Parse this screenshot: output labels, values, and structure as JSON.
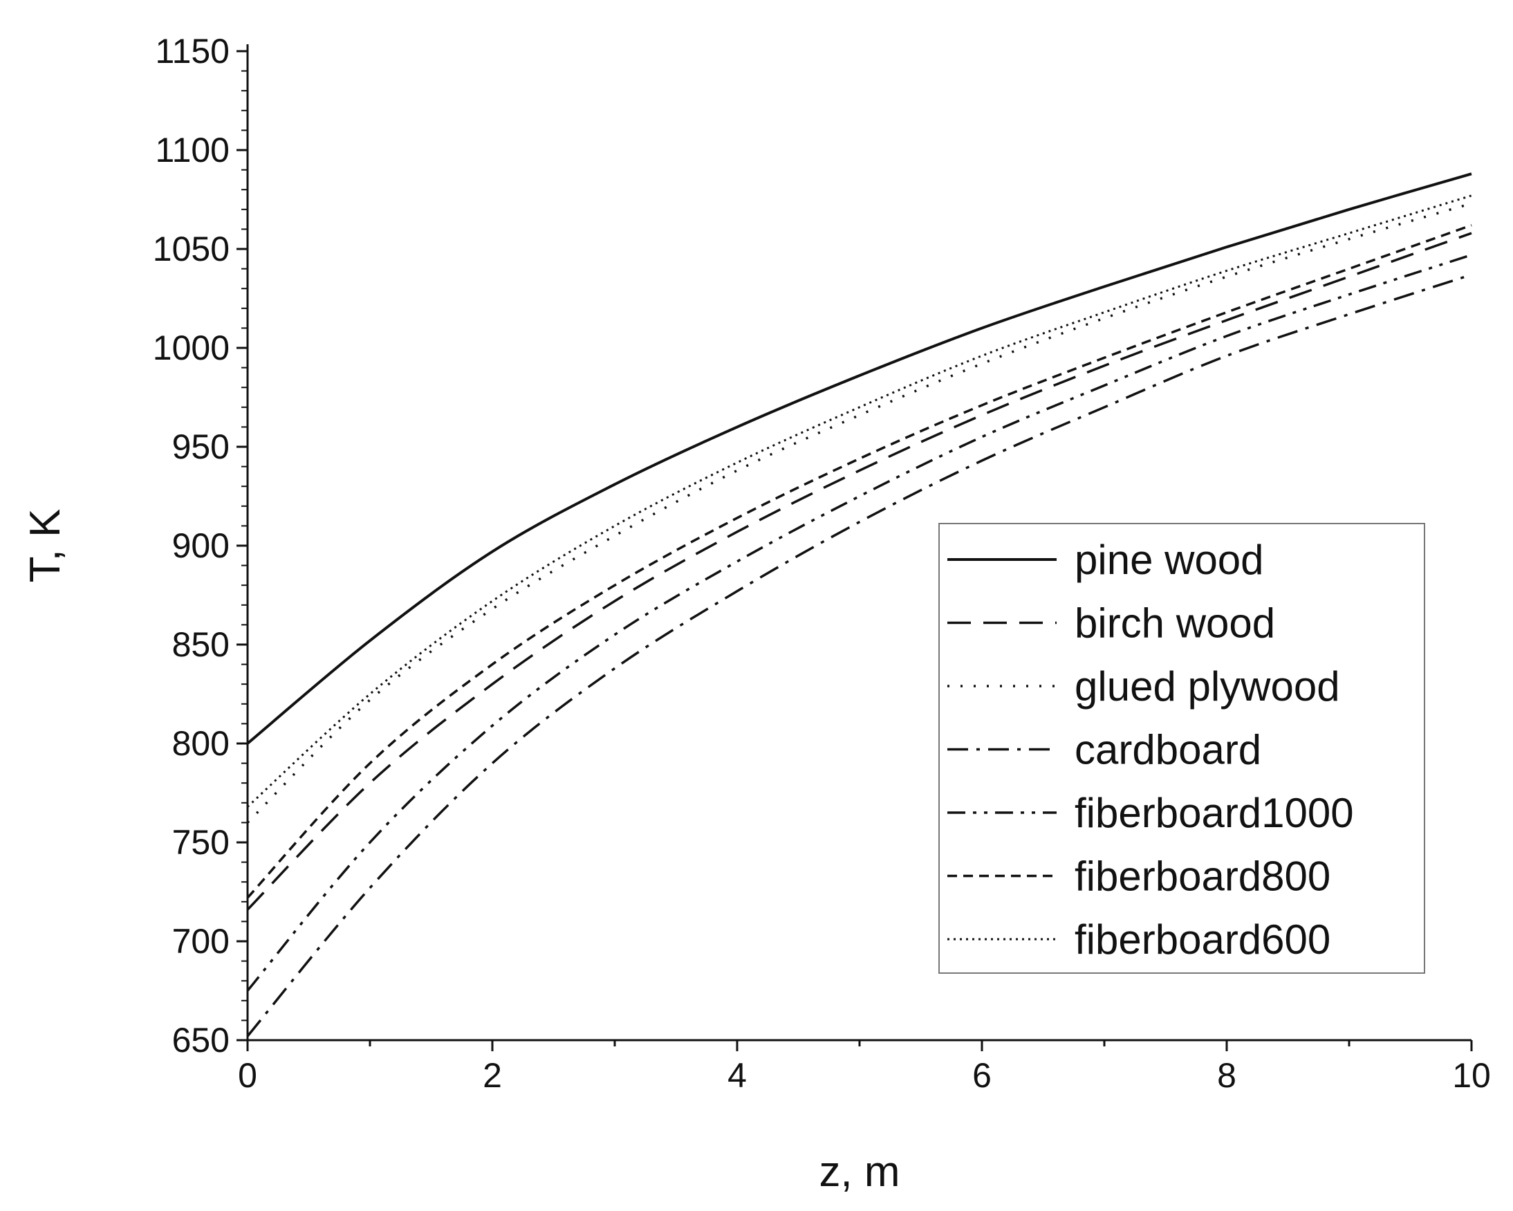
{
  "chart_data": {
    "type": "line",
    "xlabel": "z, m",
    "ylabel": "T, K",
    "xlim": [
      0,
      10
    ],
    "ylim": [
      650,
      1150
    ],
    "x_ticks": [
      "0",
      "2",
      "4",
      "6",
      "8",
      "10"
    ],
    "y_ticks": [
      "650",
      "700",
      "750",
      "800",
      "850",
      "900",
      "950",
      "1000",
      "1050",
      "1100",
      "1150"
    ],
    "grid": false,
    "legend_position": "right",
    "x": [
      0,
      1,
      2,
      3,
      4,
      5,
      6,
      7,
      8,
      9,
      10
    ],
    "series": [
      {
        "name": "pine wood",
        "style": "solid",
        "values": [
          800,
          852,
          897,
          931,
          960,
          986,
          1010,
          1031,
          1051,
          1070,
          1088
        ]
      },
      {
        "name": "birch wood",
        "style": "dash",
        "values": [
          716,
          780,
          830,
          872,
          907,
          938,
          966,
          991,
          1014,
          1036,
          1058
        ]
      },
      {
        "name": "glued plywood",
        "style": "dot",
        "values": [
          760,
          822,
          868,
          905,
          938,
          966,
          992,
          1015,
          1036,
          1055,
          1073
        ]
      },
      {
        "name": "cardboard",
        "style": "dashdot",
        "values": [
          652,
          727,
          790,
          838,
          877,
          912,
          943,
          970,
          996,
          1017,
          1037
        ]
      },
      {
        "name": "fiberboard1000",
        "style": "dashdotdot",
        "values": [
          675,
          750,
          809,
          855,
          892,
          925,
          955,
          981,
          1006,
          1027,
          1047
        ]
      },
      {
        "name": "fiberboard800",
        "style": "shortdash",
        "values": [
          722,
          790,
          840,
          880,
          914,
          944,
          971,
          995,
          1018,
          1040,
          1062
        ]
      },
      {
        "name": "fiberboard600",
        "style": "densedot",
        "values": [
          768,
          825,
          872,
          910,
          942,
          970,
          996,
          1018,
          1039,
          1058,
          1077
        ]
      }
    ]
  }
}
